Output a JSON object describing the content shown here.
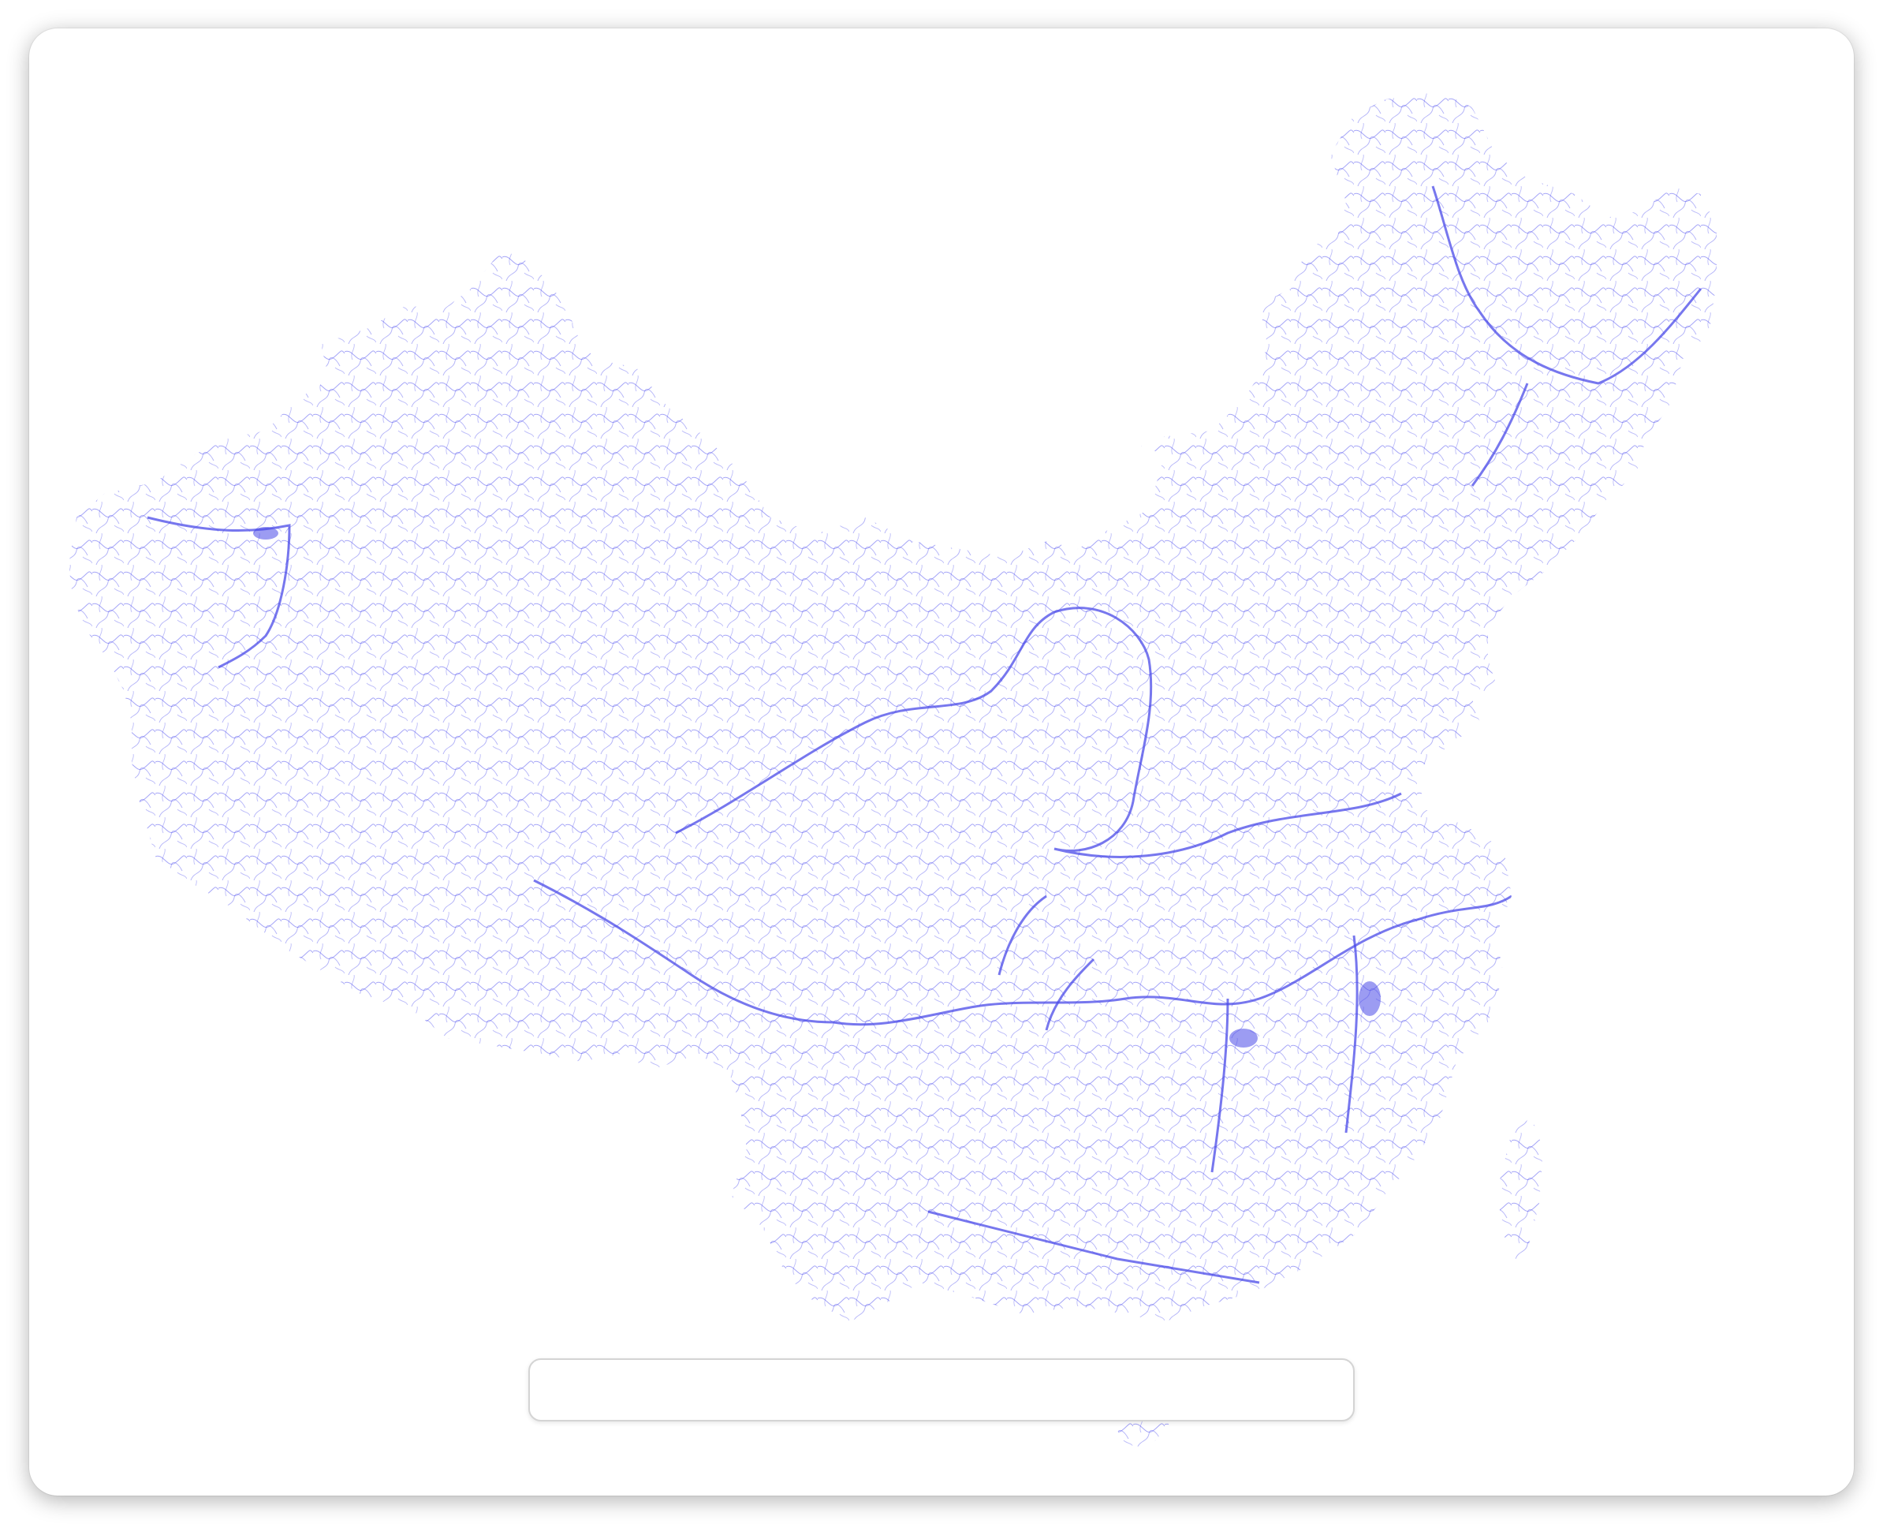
{
  "map": {
    "region": "China",
    "layer": "river-network",
    "river_color": "#5a5af0",
    "background_color": "#ffffff"
  },
  "search": {
    "value": "",
    "placeholder": ""
  }
}
